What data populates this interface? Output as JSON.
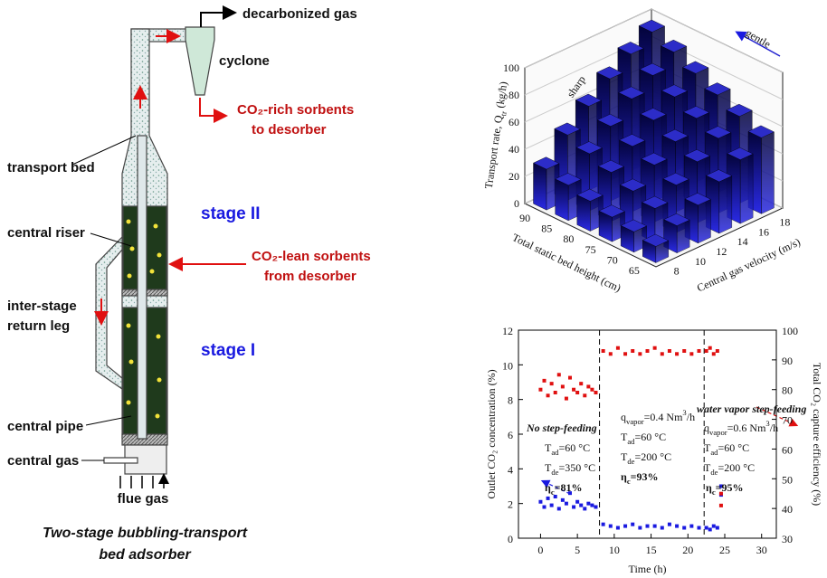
{
  "diagram": {
    "decarbonized_gas": "decarbonized gas",
    "cyclone": "cyclone",
    "co2_rich": [
      "CO₂-rich sorbents",
      "to desorber"
    ],
    "transport_bed": "transport bed",
    "stage_2": "stage II",
    "central_riser": "central riser",
    "co2_lean": [
      "CO₂-lean sorbents",
      "from desorber"
    ],
    "return_leg": [
      "inter-stage",
      "return leg"
    ],
    "stage_1": "stage I",
    "central_pipe": "central pipe",
    "central_gas": "central gas",
    "flue_gas": "flue gas",
    "caption": [
      "Two-stage bubbling-transport",
      "bed adsorber"
    ]
  },
  "chart_data": [
    {
      "type": "bar3d",
      "categories": [
        "8",
        "10",
        "12",
        "14",
        "16",
        "18"
      ],
      "category_label": "Central gas velocity (m/s)",
      "depth_categories": [
        "90",
        "85",
        "80",
        "75",
        "70",
        "65"
      ],
      "depth_label": "Total static bed height (cm)",
      "zlabel": [
        "Transport rate, Q",
        {
          "sub": "tr"
        },
        " (kg/h)"
      ],
      "values": [
        [
          30,
          48,
          62,
          75,
          86,
          95
        ],
        [
          26,
          42,
          55,
          68,
          78,
          88
        ],
        [
          22,
          36,
          48,
          60,
          70,
          80
        ],
        [
          18,
          30,
          42,
          52,
          62,
          72
        ],
        [
          15,
          25,
          35,
          45,
          55,
          64
        ],
        [
          12,
          20,
          28,
          38,
          47,
          56
        ]
      ],
      "zlim": [
        0,
        100
      ],
      "zticks": [
        0,
        20,
        40,
        60,
        80,
        100
      ],
      "color": "#2a2ae6",
      "annotations": [
        {
          "text": "sharp",
          "color": "#e01010"
        },
        {
          "text": "gentle",
          "color": "#2020d0"
        }
      ]
    },
    {
      "type": "scatter",
      "xlabel": "Time (h)",
      "ylabel": "Outlet CO₂ concentration (%)",
      "y2label": "Total CO₂ capture efficiency (%)",
      "x": [
        0,
        0.5,
        1,
        1.5,
        2,
        2.5,
        3,
        3.5,
        4,
        4.5,
        5,
        5.5,
        6,
        6.5,
        7,
        7.5,
        8.5,
        9.5,
        10.5,
        11.5,
        12.5,
        13.5,
        14.5,
        15.5,
        16.5,
        17.5,
        18.5,
        19.5,
        20.5,
        21.5,
        22.5,
        23,
        23.5,
        24,
        24.5,
        24.5
      ],
      "series": [
        {
          "color": "#1a1ae0",
          "values": [
            2.1,
            1.8,
            2.3,
            1.9,
            2.4,
            1.7,
            2.2,
            2.0,
            2.6,
            1.8,
            2.1,
            1.9,
            1.7,
            2.0,
            1.9,
            1.8,
            0.8,
            0.7,
            0.6,
            0.7,
            0.8,
            0.6,
            0.7,
            0.7,
            0.6,
            0.8,
            0.7,
            0.6,
            0.7,
            0.6,
            0.6,
            0.5,
            0.7,
            0.6,
            3.0,
            2.5
          ]
        },
        {
          "color": "#e01010",
          "axis": "y2",
          "values": [
            80,
            83,
            78,
            82,
            79,
            85,
            81,
            77,
            84,
            80,
            79,
            82,
            78,
            81,
            80,
            79,
            93,
            92,
            94,
            92,
            93,
            92,
            93,
            94,
            92,
            93,
            92,
            93,
            92,
            93,
            93,
            94,
            92,
            93,
            45,
            41
          ]
        }
      ],
      "xlim": [
        -3,
        32
      ],
      "xticks": [
        0,
        5,
        10,
        15,
        20,
        25,
        30
      ],
      "ylim": [
        0,
        12
      ],
      "yticks": [
        0,
        2,
        4,
        6,
        8,
        10,
        12
      ],
      "y2lim": [
        30,
        100
      ],
      "y2ticks": [
        30,
        40,
        50,
        60,
        70,
        80,
        90,
        100
      ],
      "vlines": [
        8,
        22.2
      ],
      "annotations": [
        {
          "text": [
            "No step-feeding"
          ]
        },
        {
          "text": [
            "T",
            {
              "sub": "ad"
            },
            "=60 °C"
          ]
        },
        {
          "text": [
            "T",
            {
              "sub": "de"
            },
            "=350 °C"
          ]
        },
        {
          "text": [
            "η",
            {
              "sub": "c"
            },
            "=81%"
          ],
          "color": "#1a8a1a"
        },
        {
          "text": [
            "water vapor step-feeding"
          ]
        },
        {
          "text": [
            "q",
            {
              "sub": "vapor"
            },
            "=0.4 Nm",
            {
              "sup": "3"
            },
            "/h"
          ]
        },
        {
          "text": [
            "T",
            {
              "sub": "ad"
            },
            "=60 °C"
          ]
        },
        {
          "text": [
            "T",
            {
              "sub": "de"
            },
            "=200 °C"
          ]
        },
        {
          "text": [
            "η",
            {
              "sub": "c"
            },
            "=93%"
          ],
          "color": "#1a8a1a"
        },
        {
          "text": [
            "q",
            {
              "sub": "vapor"
            },
            "=0.6 Nm",
            {
              "sup": "3"
            },
            "/h"
          ]
        },
        {
          "text": [
            "T",
            {
              "sub": "ad"
            },
            "=60 °C"
          ]
        },
        {
          "text": [
            "T",
            {
              "sub": "de"
            },
            "=200 °C"
          ]
        },
        {
          "text": [
            "η",
            {
              "sub": "c"
            },
            "=95%"
          ],
          "color": "#1a8a1a"
        }
      ]
    }
  ]
}
